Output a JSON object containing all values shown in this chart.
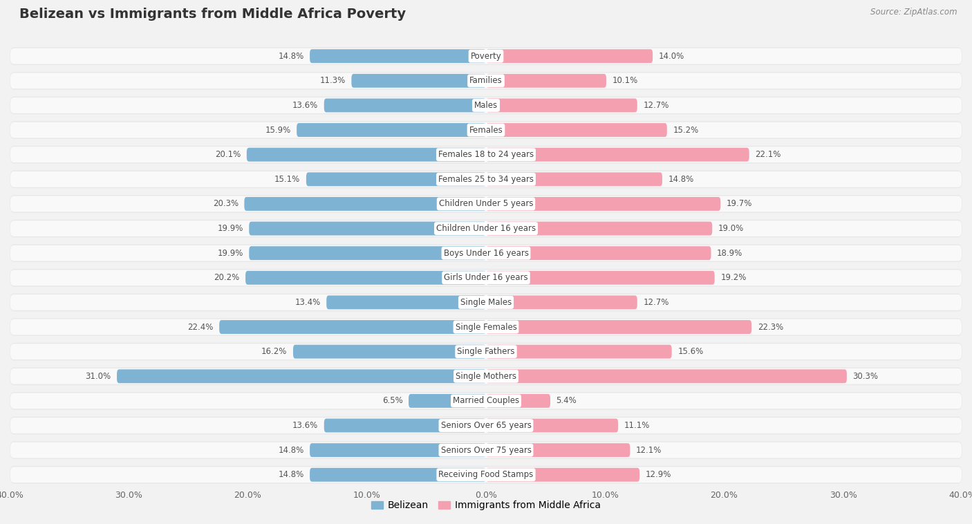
{
  "title": "Belizean vs Immigrants from Middle Africa Poverty",
  "source": "Source: ZipAtlas.com",
  "categories": [
    "Poverty",
    "Families",
    "Males",
    "Females",
    "Females 18 to 24 years",
    "Females 25 to 34 years",
    "Children Under 5 years",
    "Children Under 16 years",
    "Boys Under 16 years",
    "Girls Under 16 years",
    "Single Males",
    "Single Females",
    "Single Fathers",
    "Single Mothers",
    "Married Couples",
    "Seniors Over 65 years",
    "Seniors Over 75 years",
    "Receiving Food Stamps"
  ],
  "belizean": [
    14.8,
    11.3,
    13.6,
    15.9,
    20.1,
    15.1,
    20.3,
    19.9,
    19.9,
    20.2,
    13.4,
    22.4,
    16.2,
    31.0,
    6.5,
    13.6,
    14.8,
    14.8
  ],
  "immigrants": [
    14.0,
    10.1,
    12.7,
    15.2,
    22.1,
    14.8,
    19.7,
    19.0,
    18.9,
    19.2,
    12.7,
    22.3,
    15.6,
    30.3,
    5.4,
    11.1,
    12.1,
    12.9
  ],
  "belizean_color": "#7fb3d3",
  "immigrants_color": "#f4a0b0",
  "row_bg_color": "#e8e8e8",
  "page_bg_color": "#f2f2f2",
  "bar_inner_bg": "#f9f9f9",
  "label_bg": "#ffffff",
  "xlim": 40.0,
  "legend_label_belizean": "Belizean",
  "legend_label_immigrants": "Immigrants from Middle Africa",
  "title_fontsize": 14,
  "label_fontsize": 8.5,
  "value_fontsize": 8.5,
  "axis_fontsize": 9
}
